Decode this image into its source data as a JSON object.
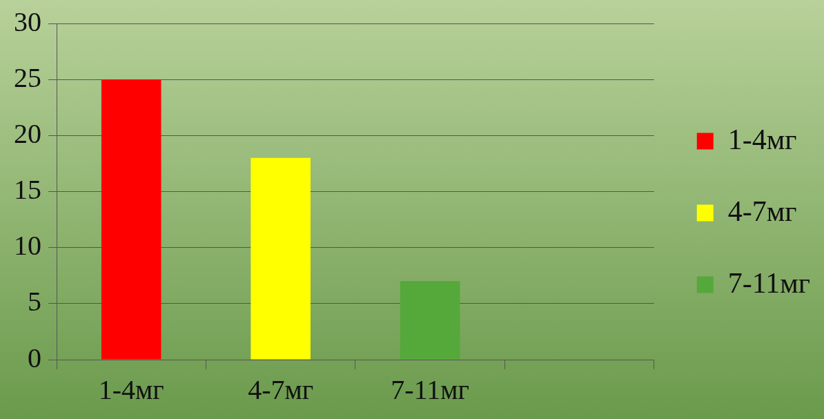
{
  "chart_data": {
    "type": "bar",
    "categories": [
      "1-4мг",
      "4-7мг",
      "7-11мг",
      null
    ],
    "series": [
      {
        "name": "1-4мг",
        "color": "#ff0000",
        "values": [
          25,
          null,
          null,
          null
        ]
      },
      {
        "name": "4-7мг",
        "color": "#ffff00",
        "values": [
          null,
          18,
          null,
          null
        ]
      },
      {
        "name": "7-11мг",
        "color": "#55a83a",
        "values": [
          null,
          null,
          7,
          null
        ]
      }
    ],
    "ylim": [
      0,
      30
    ],
    "yticks": [
      0,
      5,
      10,
      15,
      20,
      25,
      30
    ],
    "grid": "y",
    "legend": "right"
  }
}
